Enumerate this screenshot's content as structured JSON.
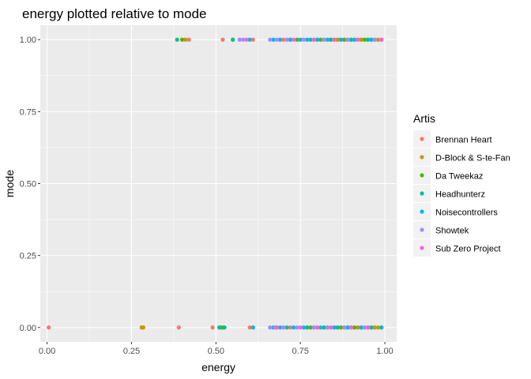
{
  "chart_data": {
    "type": "scatter",
    "title": "energy plotted relative to mode",
    "xlabel": "energy",
    "ylabel": "mode",
    "xlim": [
      -0.02,
      1.035
    ],
    "ylim": [
      -0.05,
      1.05
    ],
    "x_ticks": [
      0.0,
      0.25,
      0.5,
      0.75,
      1.0
    ],
    "x_tick_labels": [
      "0.00",
      "0.25",
      "0.50",
      "0.75",
      "1.00"
    ],
    "y_ticks": [
      0.0,
      0.25,
      0.5,
      0.75,
      1.0
    ],
    "y_tick_labels": [
      "0.00",
      "0.25",
      "0.50",
      "0.75",
      "1.00"
    ],
    "grid": true,
    "legend_position": "right",
    "legend_title": "Artis",
    "series": [
      {
        "name": "Brennan Heart",
        "color": "#F8766D",
        "points": [
          [
            0.005,
            0
          ],
          [
            0.39,
            0
          ],
          [
            0.49,
            0
          ],
          [
            0.6,
            0
          ],
          [
            0.68,
            0
          ],
          [
            0.72,
            0
          ],
          [
            0.78,
            0
          ],
          [
            0.85,
            0
          ],
          [
            0.92,
            0
          ],
          [
            0.97,
            0
          ],
          [
            0.42,
            1
          ],
          [
            0.52,
            1
          ],
          [
            0.61,
            1
          ],
          [
            0.7,
            1
          ],
          [
            0.79,
            1
          ],
          [
            0.86,
            1
          ],
          [
            0.93,
            1
          ],
          [
            0.98,
            1
          ]
        ]
      },
      {
        "name": "D-Block & S-te-Fan",
        "color": "#C49A00",
        "points": [
          [
            0.28,
            0
          ],
          [
            0.285,
            0
          ],
          [
            0.77,
            0
          ],
          [
            0.8,
            0
          ],
          [
            0.82,
            0
          ],
          [
            0.84,
            0
          ],
          [
            0.86,
            0
          ],
          [
            0.87,
            0
          ],
          [
            0.88,
            0
          ],
          [
            0.89,
            0
          ],
          [
            0.9,
            0
          ],
          [
            0.91,
            0
          ],
          [
            0.92,
            0
          ],
          [
            0.93,
            0
          ],
          [
            0.94,
            0
          ],
          [
            0.95,
            0
          ],
          [
            0.96,
            0
          ],
          [
            0.97,
            0
          ],
          [
            0.98,
            0
          ],
          [
            0.99,
            0
          ],
          [
            0.41,
            1
          ],
          [
            0.8,
            1
          ],
          [
            0.82,
            1
          ],
          [
            0.84,
            1
          ],
          [
            0.85,
            1
          ],
          [
            0.86,
            1
          ],
          [
            0.87,
            1
          ],
          [
            0.88,
            1
          ],
          [
            0.89,
            1
          ],
          [
            0.9,
            1
          ],
          [
            0.91,
            1
          ],
          [
            0.92,
            1
          ],
          [
            0.93,
            1
          ],
          [
            0.94,
            1
          ],
          [
            0.95,
            1
          ],
          [
            0.96,
            1
          ],
          [
            0.97,
            1
          ],
          [
            0.98,
            1
          ],
          [
            0.99,
            1
          ]
        ]
      },
      {
        "name": "Da Tweekaz",
        "color": "#53B400",
        "points": [
          [
            0.515,
            0
          ],
          [
            0.52,
            0
          ],
          [
            0.7,
            0
          ],
          [
            0.78,
            0
          ],
          [
            0.83,
            0
          ],
          [
            0.87,
            0
          ],
          [
            0.91,
            0
          ],
          [
            0.95,
            0
          ],
          [
            0.4,
            1
          ],
          [
            0.55,
            1
          ],
          [
            0.74,
            1
          ],
          [
            0.81,
            1
          ],
          [
            0.88,
            1
          ],
          [
            0.94,
            1
          ]
        ]
      },
      {
        "name": "Headhunterz",
        "color": "#00C094",
        "points": [
          [
            0.51,
            0
          ],
          [
            0.525,
            0
          ],
          [
            0.71,
            0
          ],
          [
            0.77,
            0
          ],
          [
            0.82,
            0
          ],
          [
            0.86,
            0
          ],
          [
            0.9,
            0
          ],
          [
            0.96,
            0
          ],
          [
            0.385,
            1
          ],
          [
            0.55,
            1
          ],
          [
            0.72,
            1
          ],
          [
            0.78,
            1
          ],
          [
            0.84,
            1
          ],
          [
            0.9,
            1
          ],
          [
            0.95,
            1
          ]
        ]
      },
      {
        "name": "Noisecontrollers",
        "color": "#00B6EB",
        "points": [
          [
            0.61,
            0
          ],
          [
            0.67,
            0
          ],
          [
            0.69,
            0
          ],
          [
            0.73,
            0
          ],
          [
            0.76,
            0
          ],
          [
            0.79,
            0
          ],
          [
            0.81,
            0
          ],
          [
            0.85,
            0
          ],
          [
            0.89,
            0
          ],
          [
            0.93,
            0
          ],
          [
            0.99,
            0
          ],
          [
            0.6,
            1
          ],
          [
            0.67,
            1
          ],
          [
            0.69,
            1
          ],
          [
            0.72,
            1
          ],
          [
            0.75,
            1
          ],
          [
            0.77,
            1
          ],
          [
            0.8,
            1
          ],
          [
            0.83,
            1
          ],
          [
            0.87,
            1
          ],
          [
            0.91,
            1
          ],
          [
            0.96,
            1
          ]
        ]
      },
      {
        "name": "Showtek",
        "color": "#A58AFF",
        "points": [
          [
            0.66,
            0
          ],
          [
            0.675,
            0
          ],
          [
            0.7,
            0
          ],
          [
            0.74,
            0
          ],
          [
            0.79,
            0
          ],
          [
            0.83,
            0
          ],
          [
            0.88,
            0
          ],
          [
            0.94,
            0
          ],
          [
            0.57,
            1
          ],
          [
            0.58,
            1
          ],
          [
            0.66,
            1
          ],
          [
            0.68,
            1
          ],
          [
            0.71,
            1
          ],
          [
            0.76,
            1
          ],
          [
            0.82,
            1
          ],
          [
            0.89,
            1
          ],
          [
            0.97,
            1
          ]
        ]
      },
      {
        "name": "Sub Zero Project",
        "color": "#FB61D7",
        "points": [
          [
            0.68,
            0
          ],
          [
            0.75,
            0
          ],
          [
            0.8,
            0
          ],
          [
            0.84,
            0
          ],
          [
            0.9,
            0
          ],
          [
            0.95,
            0
          ],
          [
            0.59,
            1
          ],
          [
            0.73,
            1
          ],
          [
            0.79,
            1
          ],
          [
            0.85,
            1
          ],
          [
            0.92,
            1
          ],
          [
            0.99,
            1
          ]
        ]
      }
    ]
  }
}
